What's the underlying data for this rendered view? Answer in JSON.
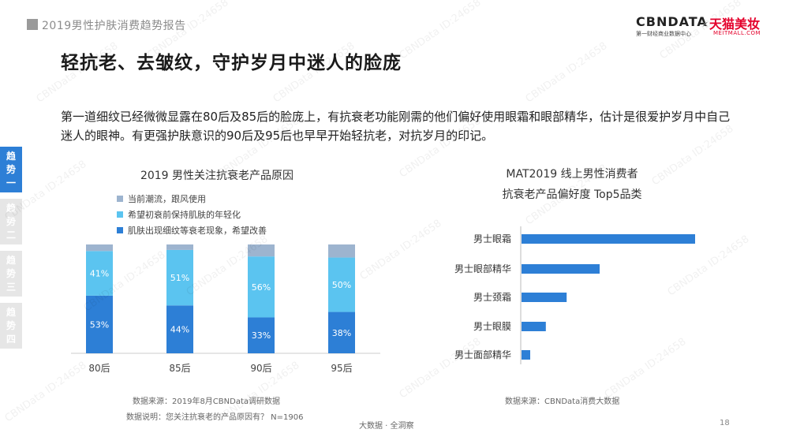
{
  "header": {
    "report_title": "2019男性护肤消费趋势报告",
    "brand_cbn": "CBNDATA",
    "brand_cbn_sub": "第一财经商业数据中心",
    "brand_x": "×",
    "brand_tmall": "天猫美妆",
    "brand_tmall_sub": "MEITMALL.COM"
  },
  "page": {
    "title": "轻抗老、去皱纹，守护岁月中迷人的脸庞",
    "description": "第一道细纹已经微微显露在80后及85后的脸庞上，有抗衰老功能刚需的他们偏好使用眼霜和眼部精华，估计是很爱护岁月中自己迷人的眼神。有更强护肤意识的90后及95后也早早开始轻抗老，对抗岁月的印记。"
  },
  "side_tabs": [
    {
      "label": "趋势一",
      "chars": [
        "趋",
        "势",
        "一"
      ]
    },
    {
      "label": "趋势二",
      "chars": [
        "趋",
        "势",
        "二"
      ]
    },
    {
      "label": "趋势三",
      "chars": [
        "趋",
        "势",
        "三"
      ]
    },
    {
      "label": "趋势四",
      "chars": [
        "趋",
        "势",
        "四"
      ]
    }
  ],
  "colors": {
    "accent": "#2d7fd6",
    "series_dark": "#2d7fd6",
    "series_light": "#5bc4f0",
    "series_grey": "#9db4cf",
    "bar_h": "#2d7fd6",
    "tab_inactive": "#e6e6e6"
  },
  "chart_data": [
    {
      "type": "bar",
      "stacked": true,
      "title": "2019 男性关注抗衰老产品原因",
      "categories": [
        "80后",
        "85后",
        "90后",
        "95后"
      ],
      "series": [
        {
          "name": "肌肤出现细纹等衰老现象，希望改善",
          "values": [
            53,
            44,
            33,
            38
          ],
          "labels": [
            "53%",
            "44%",
            "33%",
            "38%"
          ]
        },
        {
          "name": "希望初衰前保持肌肤的年轻化",
          "values": [
            41,
            51,
            56,
            50
          ],
          "labels": [
            "41%",
            "51%",
            "56%",
            "50%"
          ]
        },
        {
          "name": "当前潮流，跟风使用",
          "values": [
            6,
            5,
            11,
            12
          ]
        }
      ],
      "ylim": [
        0,
        100
      ],
      "legend_position": "top-left",
      "source": "数据来源：2019年8月CBNData调研数据",
      "note": "数据说明：您关注抗衰老的产品原因有？ N=1906"
    },
    {
      "type": "bar",
      "orientation": "horizontal",
      "title": "MAT2019 线上男性消费者",
      "subtitle": "抗衰老产品偏好度 Top5品类",
      "categories": [
        "男士眼霜",
        "男士眼部精华",
        "男士颈霜",
        "男士眼膜",
        "男士面部精华"
      ],
      "values": [
        100,
        45,
        26,
        14,
        5
      ],
      "source": "数据来源：CBNData消费大数据"
    }
  ],
  "footer": {
    "center": "大数据 · 全洞察",
    "page_number": "18"
  },
  "watermark": "CBNData ID:24658"
}
